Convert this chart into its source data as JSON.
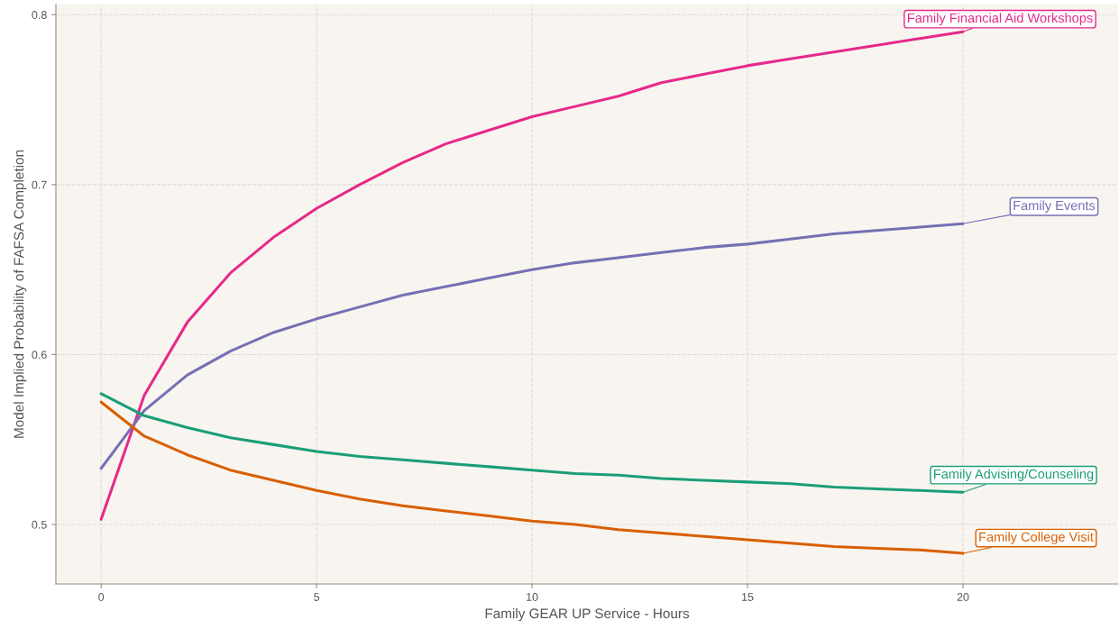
{
  "chart_data": {
    "type": "line",
    "xlabel": "Family GEAR UP Service - Hours",
    "ylabel": "Model Implied Probability of FAFSA Completion",
    "x": [
      0,
      1,
      2,
      3,
      4,
      5,
      6,
      7,
      8,
      9,
      10,
      11,
      12,
      13,
      14,
      15,
      16,
      17,
      18,
      19,
      20
    ],
    "series": [
      {
        "name": "Family Financial Aid Workshops",
        "color": "#e7298a",
        "values": [
          0.503,
          0.576,
          0.619,
          0.648,
          0.669,
          0.686,
          0.7,
          0.713,
          0.724,
          0.732,
          0.74,
          0.746,
          0.752,
          0.76,
          0.765,
          0.77,
          0.774,
          0.778,
          0.782,
          0.786,
          0.79
        ]
      },
      {
        "name": "Family Events",
        "color": "#7570b3",
        "values": [
          0.533,
          0.567,
          0.588,
          0.602,
          0.613,
          0.621,
          0.628,
          0.635,
          0.64,
          0.645,
          0.65,
          0.654,
          0.657,
          0.66,
          0.663,
          0.665,
          0.668,
          0.671,
          0.673,
          0.675,
          0.677
        ]
      },
      {
        "name": "Family Advising/Counseling",
        "color": "#1b9e77",
        "values": [
          0.577,
          0.564,
          0.557,
          0.551,
          0.547,
          0.543,
          0.54,
          0.538,
          0.536,
          0.534,
          0.532,
          0.53,
          0.529,
          0.527,
          0.526,
          0.525,
          0.524,
          0.522,
          0.521,
          0.52,
          0.519
        ]
      },
      {
        "name": "Family College Visit",
        "color": "#d95f02",
        "values": [
          0.572,
          0.552,
          0.541,
          0.532,
          0.526,
          0.52,
          0.515,
          0.511,
          0.508,
          0.505,
          0.502,
          0.5,
          0.497,
          0.495,
          0.493,
          0.491,
          0.489,
          0.487,
          0.486,
          0.485,
          0.483
        ]
      }
    ],
    "xlim": [
      -1.05,
      23.6
    ],
    "ylim": [
      0.465,
      0.806
    ],
    "xticks": [
      0,
      5,
      10,
      15,
      20
    ],
    "yticks": [
      0.5,
      0.6,
      0.7,
      0.8
    ],
    "grid": true,
    "line_style": "solid",
    "marker": "none"
  }
}
